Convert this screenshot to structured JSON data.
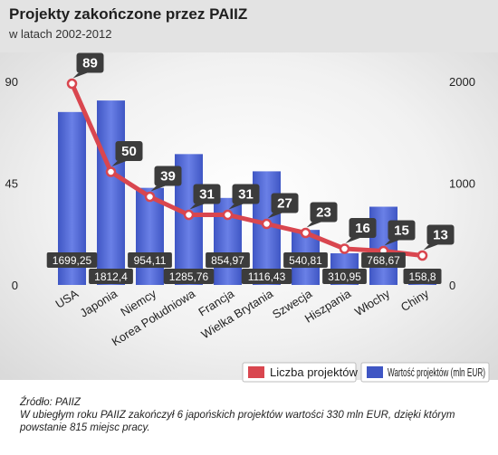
{
  "header": {
    "title": "Projekty zakończone przez PAIIZ",
    "subtitle": "w latach 2002-2012"
  },
  "footer": {
    "source": "Źródło: PAIIZ",
    "note": "W ubiegłym roku PAIIZ zakończył 6 japońskich projektów wartości 330 mln EUR, dzięki którym powstanie 815 miejsc pracy."
  },
  "colors": {
    "bar": "#3f56c4",
    "bar_light": "#6a80e6",
    "line": "#d9464f",
    "label_box": "#3c3c3c"
  },
  "chart_data": {
    "type": "bar",
    "categories": [
      "USA",
      "Japonia",
      "Niemcy",
      "Korea Południowa",
      "Francja",
      "Wielka Brytania",
      "Szwecja",
      "Hiszpania",
      "Włochy",
      "Chiny"
    ],
    "series": [
      {
        "name": "Liczba projektów",
        "type": "line",
        "axis": "left",
        "values": [
          89,
          50,
          39,
          31,
          31,
          27,
          23,
          16,
          15,
          13
        ],
        "labels": [
          "89",
          "50",
          "39",
          "31",
          "31",
          "27",
          "23",
          "16",
          "15",
          "13"
        ]
      },
      {
        "name": "Wartość projektów (mln EUR)",
        "type": "bar",
        "axis": "right",
        "values": [
          1699.25,
          1812.4,
          954.11,
          1285.76,
          854.97,
          1116.43,
          540.81,
          310.95,
          768.67,
          158.8
        ],
        "labels": [
          "1699,25",
          "1812,4",
          "954,11",
          "1285,76",
          "854,97",
          "1116,43",
          "540,81",
          "310,95",
          "768,67",
          "158,8"
        ]
      }
    ],
    "left_axis": {
      "ticks": [
        "0",
        "45",
        "90"
      ],
      "range": [
        0,
        90
      ]
    },
    "right_axis": {
      "ticks": [
        "0",
        "1000",
        "2000"
      ],
      "range": [
        0,
        2000
      ]
    },
    "legend": {
      "position": "bottom-right",
      "items": [
        "Liczba projektów",
        "Wartość projektów (mln EUR)"
      ]
    }
  }
}
